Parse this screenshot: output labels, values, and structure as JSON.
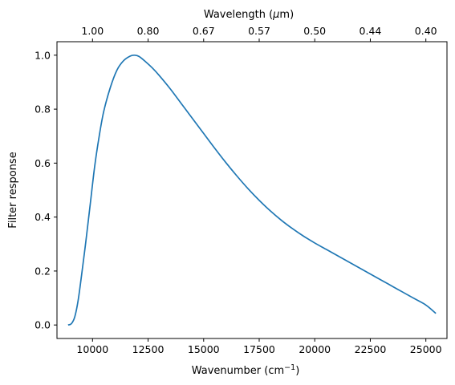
{
  "chart_data": {
    "type": "line",
    "xlabel": "Wavenumber (cm",
    "xlabel_sup": "−1",
    "xlabel_close": ")",
    "secondary_xlabel": "Wavelength (",
    "secondary_xlabel_mu": "μ",
    "secondary_xlabel_unit": "m)",
    "ylabel": "Filter response",
    "xlim": [
      8400,
      25950
    ],
    "ylim": [
      -0.05,
      1.05
    ],
    "x_ticks": [
      10000,
      12500,
      15000,
      17500,
      20000,
      22500,
      25000
    ],
    "x_tick_labels": [
      "10000",
      "12500",
      "15000",
      "17500",
      "20000",
      "22500",
      "25000"
    ],
    "y_ticks": [
      0.0,
      0.2,
      0.4,
      0.6,
      0.8,
      1.0
    ],
    "y_tick_labels": [
      "0.0",
      "0.2",
      "0.4",
      "0.6",
      "0.8",
      "1.0"
    ],
    "top_ticks": [
      10000,
      12500,
      15000,
      17500,
      20000,
      22500,
      25000
    ],
    "top_tick_labels": [
      "1.00",
      "0.80",
      "0.67",
      "0.57",
      "0.50",
      "0.44",
      "0.40"
    ],
    "grid": false,
    "color": "#1f77b4",
    "series": [
      {
        "x": [
          8900,
          9050,
          9200,
          9350,
          9500,
          9700,
          9900,
          10100,
          10300,
          10500,
          10800,
          11100,
          11400,
          11700,
          11900,
          12100,
          12400,
          12700,
          13000,
          13500,
          14000,
          14500,
          15000,
          15500,
          16000,
          16500,
          17000,
          17500,
          18000,
          18500,
          19000,
          19500,
          20000,
          20500,
          21000,
          21500,
          22000,
          22500,
          23000,
          23500,
          24000,
          24500,
          25000,
          25450
        ],
        "y": [
          0.0,
          0.005,
          0.03,
          0.09,
          0.18,
          0.31,
          0.45,
          0.59,
          0.7,
          0.79,
          0.88,
          0.945,
          0.98,
          0.997,
          1.0,
          0.995,
          0.975,
          0.952,
          0.925,
          0.875,
          0.82,
          0.765,
          0.71,
          0.655,
          0.602,
          0.552,
          0.505,
          0.462,
          0.423,
          0.388,
          0.357,
          0.329,
          0.304,
          0.281,
          0.258,
          0.235,
          0.212,
          0.189,
          0.166,
          0.143,
          0.12,
          0.097,
          0.074,
          0.043
        ]
      }
    ]
  }
}
